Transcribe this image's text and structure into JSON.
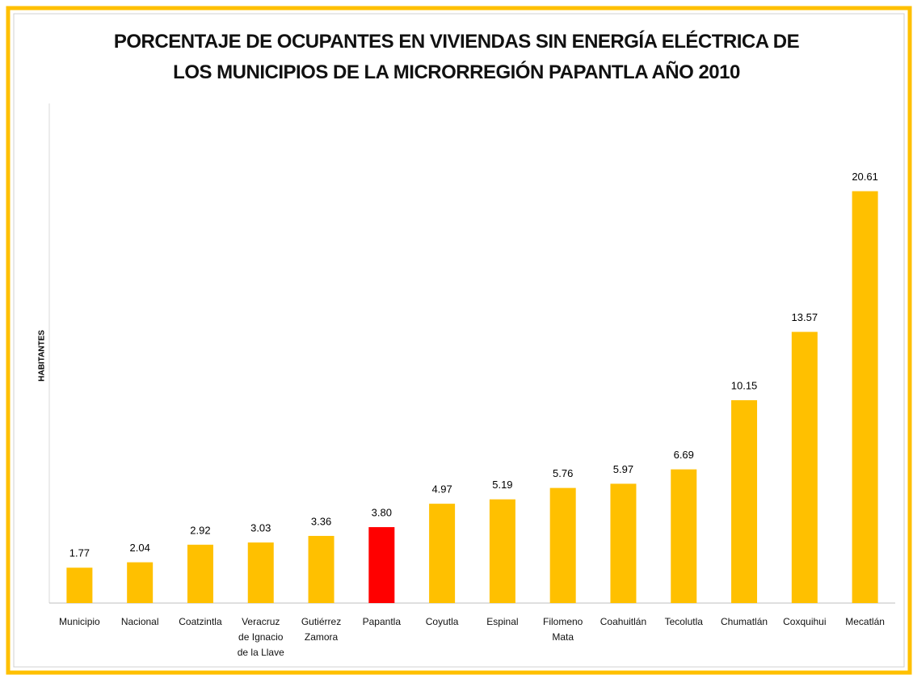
{
  "chart_data": {
    "type": "bar",
    "title": [
      "PORCENTAJE DE OCUPANTES EN VIVIENDAS SIN ENERGÍA ELÉCTRICA DE",
      "LOS MUNICIPIOS DE LA MICRORREGIÓN PAPANTLA AÑO 2010"
    ],
    "y_label": "HABITANTES",
    "categories": [
      "Municipio",
      "Nacional",
      "Coatzintla",
      "Veracruz de Ignacio de la Llave",
      "Gutiérrez Zamora",
      "Papantla",
      "Coyutla",
      "Espinal",
      "Filomeno Mata",
      "Coahuitlán",
      "Tecolutla",
      "Chumatlán",
      "Coxquihui",
      "Mecatlán"
    ],
    "values": [
      1.77,
      2.04,
      2.92,
      3.03,
      3.36,
      3.8,
      4.97,
      5.19,
      5.76,
      5.97,
      6.69,
      10.15,
      13.57,
      20.61
    ],
    "value_labels": [
      "1.77",
      "2.04",
      "2.92",
      "3.03",
      "3.36",
      "3.80",
      "4.97",
      "5.19",
      "5.76",
      "5.97",
      "6.69",
      "10.15",
      "13.57",
      "20.61"
    ],
    "colors": [
      "#ffc000",
      "#ffc000",
      "#ffc000",
      "#ffc000",
      "#ffc000",
      "#ff0000",
      "#ffc000",
      "#ffc000",
      "#ffc000",
      "#ffc000",
      "#ffc000",
      "#ffc000",
      "#ffc000",
      "#ffc000"
    ],
    "ylim": [
      0,
      25
    ]
  }
}
